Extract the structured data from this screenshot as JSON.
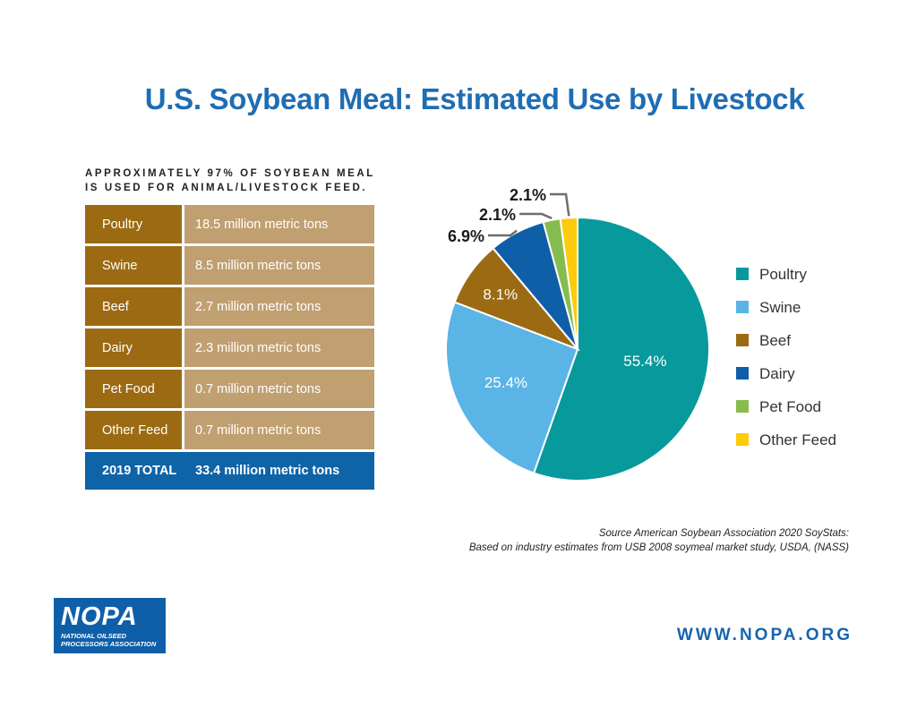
{
  "chart_data": {
    "type": "pie",
    "title": "U.S. Soybean Meal: Estimated Use by Livestock",
    "categories": [
      "Poultry",
      "Swine",
      "Beef",
      "Dairy",
      "Pet Food",
      "Other Feed"
    ],
    "values": [
      55.4,
      25.4,
      8.1,
      6.9,
      2.1,
      2.1
    ],
    "labels": [
      "55.4%",
      "25.4%",
      "8.1%",
      "6.9%",
      "2.1%",
      "2.1%"
    ],
    "colors": [
      "#07999b",
      "#5ab4e5",
      "#9b6a12",
      "#0e5fa8",
      "#86bc4d",
      "#fdcb0c"
    ],
    "legend_position": "right"
  },
  "summary": {
    "subtitle_line1": "APPROXIMATELY 97% OF SOYBEAN MEAL",
    "subtitle_line2": "IS USED FOR ANIMAL/LIVESTOCK FEED.",
    "rows": [
      {
        "category": "Poultry",
        "amount": "18.5 million metric tons"
      },
      {
        "category": "Swine",
        "amount": "8.5 million metric tons"
      },
      {
        "category": "Beef",
        "amount": "2.7 million metric tons"
      },
      {
        "category": "Dairy",
        "amount": "2.3 million metric tons"
      },
      {
        "category": "Pet Food",
        "amount": "0.7 million metric tons"
      },
      {
        "category": "Other Feed",
        "amount": "0.7 million metric tons"
      }
    ],
    "total": {
      "category": "2019 TOTAL",
      "amount": "33.4 million metric tons"
    }
  },
  "source": {
    "line1": "Source American Soybean Association 2020 SoyStats:",
    "line2": "Based on industry estimates from USB 2008 soymeal market study, USDA, (NASS)"
  },
  "footer": {
    "logo_word": "NOPA",
    "logo_sub1": "NATIONAL OILSEED",
    "logo_sub2": "PROCESSORS ASSOCIATION",
    "website": "WWW.NOPA.ORG"
  }
}
